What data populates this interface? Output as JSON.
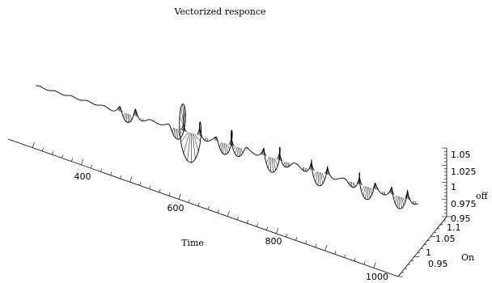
{
  "chart_data": {
    "type": "line",
    "title": "Vectorized responce",
    "axes": {
      "x": {
        "label": "Time",
        "ticks": [
          "400",
          "600",
          "800",
          "1000"
        ],
        "range": [
          250,
          1050
        ]
      },
      "y": {
        "label": "On",
        "ticks": [
          "0.95",
          "1",
          "1.05",
          "1.1"
        ],
        "range": [
          0.95,
          1.1
        ]
      },
      "z": {
        "label": "off",
        "ticks": [
          "0.95",
          "0.975",
          "1",
          "1.025",
          "1.05"
        ],
        "range": [
          0.95,
          1.05
        ]
      }
    },
    "grid": false,
    "legend": "none",
    "description_note": "Damped oscillating vector response; bursts of oscillation recur roughly every 100 time units"
  }
}
